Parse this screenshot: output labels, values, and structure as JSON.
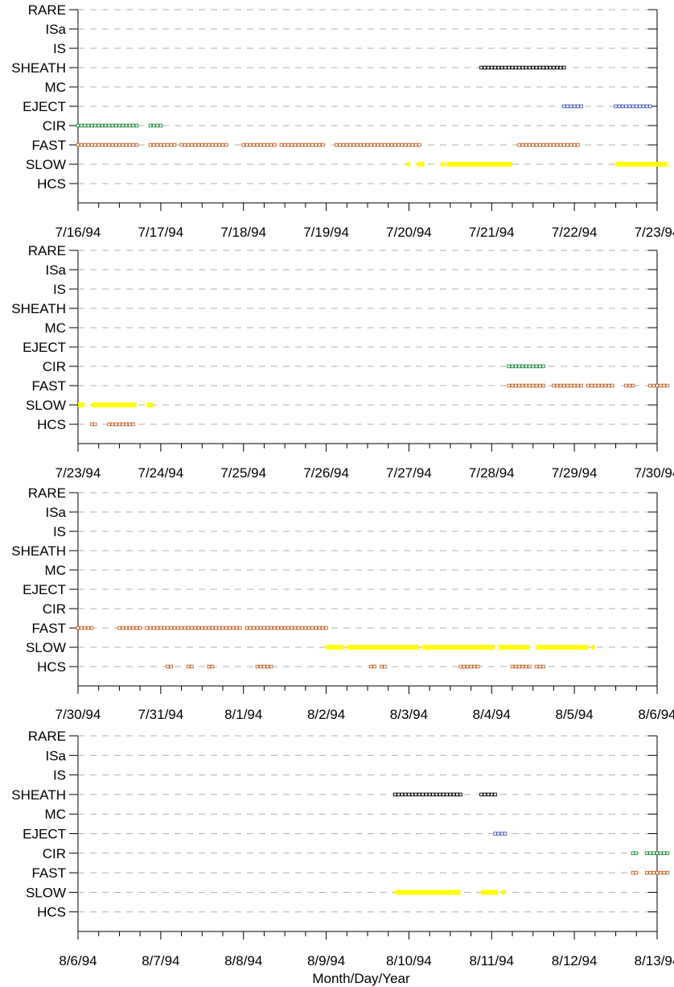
{
  "chart_data": {
    "type": "scatter",
    "xlabel": "Month/Day/Year",
    "categories": [
      "RARE",
      "ISa",
      "IS",
      "SHEATH",
      "MC",
      "EJECT",
      "CIR",
      "FAST",
      "SLOW",
      "HCS"
    ],
    "colors": {
      "SHEATH": "#000000",
      "EJECT": "#4a5fb8",
      "CIR": "#1f8a3c",
      "FAST": "#c0642a",
      "SLOW": "#ffff00",
      "HCS": "#c0642a"
    },
    "panels": [
      {
        "ticks": [
          "7/16/94",
          "7/17/94",
          "7/18/94",
          "7/19/94",
          "7/20/94",
          "7/21/94",
          "7/22/94",
          "7/23/94"
        ],
        "xlim": [
          "1994-07-16",
          "1994-07-23"
        ],
        "series": [
          {
            "category": "SHEATH",
            "spans": [
              [
                "1994-07-20T21:00",
                "1994-07-21T21:00"
              ]
            ]
          },
          {
            "category": "EJECT",
            "spans": [
              [
                "1994-07-21T21:00",
                "1994-07-22T02:00"
              ],
              [
                "1994-07-22T12:00",
                "1994-07-22T22:00"
              ]
            ]
          },
          {
            "category": "CIR",
            "spans": [
              [
                "1994-07-16T00:00",
                "1994-07-16T17:00"
              ],
              [
                "1994-07-16T21:00",
                "1994-07-17T00:00"
              ]
            ]
          },
          {
            "category": "FAST",
            "spans": [
              [
                "1994-07-16T00:00",
                "1994-07-16T17:00"
              ],
              [
                "1994-07-16T21:00",
                "1994-07-17T04:00"
              ],
              [
                "1994-07-17T06:00",
                "1994-07-17T19:00"
              ],
              [
                "1994-07-18T00:00",
                "1994-07-18T09:00"
              ],
              [
                "1994-07-18T11:00",
                "1994-07-18T23:00"
              ],
              [
                "1994-07-19T03:00",
                "1994-07-19T23:00"
              ],
              [
                "1994-07-20T00:00",
                "1994-07-20T01:00"
              ],
              [
                "1994-07-20T02:00",
                "1994-07-20T03:00"
              ],
              [
                "1994-07-21T08:00",
                "1994-07-22T01:00"
              ]
            ]
          },
          {
            "category": "SLOW",
            "spans": [
              [
                "1994-07-19T23:30",
                "1994-07-20T00:30"
              ],
              [
                "1994-07-20T02:30",
                "1994-07-20T04:30"
              ],
              [
                "1994-07-20T09:30",
                "1994-07-20T10:30"
              ],
              [
                "1994-07-20T11:00",
                "1994-07-21T06:00"
              ],
              [
                "1994-07-22T12:00",
                "1994-07-23T03:00"
              ]
            ]
          }
        ]
      },
      {
        "ticks": [
          "7/23/94",
          "7/24/94",
          "7/25/94",
          "7/26/94",
          "7/27/94",
          "7/28/94",
          "7/29/94",
          "7/30/94"
        ],
        "xlim": [
          "1994-07-23",
          "1994-07-30"
        ],
        "series": [
          {
            "category": "CIR",
            "spans": [
              [
                "1994-07-28T05:00",
                "1994-07-28T15:00"
              ]
            ]
          },
          {
            "category": "FAST",
            "spans": [
              [
                "1994-07-28T05:00",
                "1994-07-28T15:00"
              ],
              [
                "1994-07-28T18:00",
                "1994-07-29T02:00"
              ],
              [
                "1994-07-29T04:00",
                "1994-07-29T11:00"
              ],
              [
                "1994-07-29T15:00",
                "1994-07-29T17:00"
              ],
              [
                "1994-07-29T22:00",
                "1994-07-30T03:00"
              ]
            ]
          },
          {
            "category": "SLOW",
            "spans": [
              [
                "1994-07-23T00:00",
                "1994-07-23T02:00"
              ],
              [
                "1994-07-23T04:00",
                "1994-07-23T17:00"
              ],
              [
                "1994-07-23T20:00",
                "1994-07-23T22:00"
              ]
            ]
          },
          {
            "category": "HCS",
            "spans": [
              [
                "1994-07-23T04:00",
                "1994-07-23T04:30"
              ],
              [
                "1994-07-23T09:00",
                "1994-07-23T16:00"
              ]
            ]
          }
        ]
      },
      {
        "ticks": [
          "7/30/94",
          "7/31/94",
          "8/1/94",
          "8/2/94",
          "8/3/94",
          "8/4/94",
          "8/5/94",
          "8/6/94"
        ],
        "xlim": [
          "1994-07-30",
          "1994-08-06"
        ],
        "series": [
          {
            "category": "FAST",
            "spans": [
              [
                "1994-07-30T00:00",
                "1994-07-30T04:00"
              ],
              [
                "1994-07-30T12:00",
                "1994-07-30T18:00"
              ],
              [
                "1994-07-30T20:00",
                "1994-07-30T21:00"
              ],
              [
                "1994-07-30T22:00",
                "1994-07-31T23:00"
              ],
              [
                "1994-08-01T01:00",
                "1994-08-01T12:00"
              ],
              [
                "1994-08-01T13:00",
                "1994-08-01T20:00"
              ],
              [
                "1994-08-01T21:00",
                "1994-08-02T00:00"
              ]
            ]
          },
          {
            "category": "SLOW",
            "spans": [
              [
                "1994-08-02T00:00",
                "1994-08-02T05:00"
              ],
              [
                "1994-08-02T06:00",
                "1994-08-03T03:00"
              ],
              [
                "1994-08-03T04:00",
                "1994-08-04T01:00"
              ],
              [
                "1994-08-04T02:00",
                "1994-08-04T11:00"
              ],
              [
                "1994-08-04T13:00",
                "1994-08-05T04:00"
              ],
              [
                "1994-08-05T05:00",
                "1994-08-05T06:00"
              ]
            ]
          },
          {
            "category": "HCS",
            "spans": [
              [
                "1994-07-31T02:00",
                "1994-07-31T03:00"
              ],
              [
                "1994-07-31T08:00",
                "1994-07-31T09:00"
              ],
              [
                "1994-07-31T14:00",
                "1994-07-31T15:00"
              ],
              [
                "1994-08-01T04:00",
                "1994-08-01T08:00"
              ],
              [
                "1994-08-02T13:00",
                "1994-08-02T14:00"
              ],
              [
                "1994-08-02T16:00",
                "1994-08-02T17:00"
              ],
              [
                "1994-08-03T15:00",
                "1994-08-03T20:00"
              ],
              [
                "1994-08-04T06:00",
                "1994-08-04T11:00"
              ],
              [
                "1994-08-04T13:00",
                "1994-08-04T15:00"
              ]
            ]
          }
        ]
      },
      {
        "ticks": [
          "8/6/94",
          "8/7/94",
          "8/8/94",
          "8/9/94",
          "8/10/94",
          "8/11/94",
          "8/12/94",
          "8/13/94"
        ],
        "xlim": [
          "1994-08-06",
          "1994-08-13"
        ],
        "series": [
          {
            "category": "SHEATH",
            "spans": [
              [
                "1994-08-09T20:00",
                "1994-08-10T15:00"
              ],
              [
                "1994-08-10T21:00",
                "1994-08-11T01:00"
              ]
            ]
          },
          {
            "category": "EJECT",
            "spans": [
              [
                "1994-08-11T01:00",
                "1994-08-11T01:30"
              ],
              [
                "1994-08-11T03:00",
                "1994-08-11T03:30"
              ]
            ]
          },
          {
            "category": "CIR",
            "spans": [
              [
                "1994-08-12T17:00",
                "1994-08-12T17:30"
              ],
              [
                "1994-08-12T21:00",
                "1994-08-13T03:00"
              ]
            ]
          },
          {
            "category": "FAST",
            "spans": [
              [
                "1994-08-12T17:00",
                "1994-08-12T17:30"
              ],
              [
                "1994-08-12T21:00",
                "1994-08-13T03:00"
              ]
            ]
          },
          {
            "category": "SLOW",
            "spans": [
              [
                "1994-08-09T20:00",
                "1994-08-10T15:00"
              ],
              [
                "1994-08-10T21:00",
                "1994-08-11T02:00"
              ],
              [
                "1994-08-11T03:00",
                "1994-08-11T04:00"
              ]
            ]
          }
        ]
      }
    ]
  }
}
